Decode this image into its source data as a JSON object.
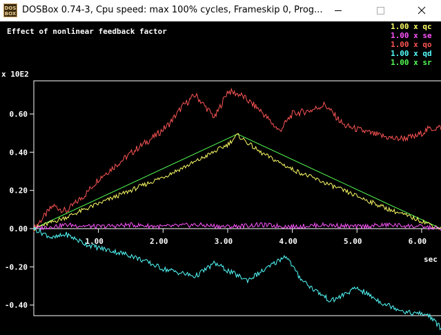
{
  "window": {
    "title": "DOSBox 0.74-3, Cpu speed: max 100% cycles, Frameskip  0, Prog...",
    "icon": "dosbox-icon",
    "controls": [
      "minimize-icon",
      "maximize-icon",
      "close-icon"
    ]
  },
  "plot": {
    "title": "Effect of nonlinear feedback factor",
    "y_scale_label": "x 10E2",
    "x_unit_label": "sec",
    "legend": [
      {
        "label": "1.00 x qc",
        "color": "#ffff66"
      },
      {
        "label": "1.00 x se",
        "color": "#ff55ff"
      },
      {
        "label": "1.00 x qo",
        "color": "#ff5555"
      },
      {
        "label": "1.00 x qd",
        "color": "#55ffff"
      },
      {
        "label": "1.00 x sr",
        "color": "#55ff55"
      }
    ]
  },
  "chart_data": {
    "type": "line",
    "title": "Effect of nonlinear feedback factor",
    "xlabel": "sec",
    "ylabel": "x 10E2",
    "xlim": [
      0,
      6.3
    ],
    "ylim": [
      -0.53,
      0.78
    ],
    "x_ticks": [
      "1.00",
      "2.00",
      "3.00",
      "4.00",
      "5.00",
      "6.00"
    ],
    "y_ticks": [
      "0.60",
      "0.40",
      "0.20",
      "0.00",
      "-0.20",
      "-0.40"
    ],
    "x_tick_values": [
      1,
      2,
      3,
      4,
      5,
      6
    ],
    "y_tick_values": [
      0.6,
      0.4,
      0.2,
      0.0,
      -0.2,
      -0.4
    ],
    "series": [
      {
        "name": "1.00 x qo",
        "color": "#ff5555",
        "x": [
          0,
          0.3,
          0.5,
          0.8,
          1.0,
          1.3,
          1.6,
          1.9,
          2.1,
          2.3,
          2.5,
          2.8,
          3.0,
          3.2,
          3.5,
          3.8,
          4.0,
          4.3,
          4.5,
          4.8,
          5.0,
          5.3,
          5.6,
          5.9,
          6.1,
          6.3
        ],
        "y": [
          0,
          0.12,
          0.09,
          0.18,
          0.26,
          0.34,
          0.42,
          0.49,
          0.55,
          0.64,
          0.7,
          0.58,
          0.72,
          0.7,
          0.62,
          0.51,
          0.6,
          0.62,
          0.65,
          0.54,
          0.52,
          0.49,
          0.47,
          0.48,
          0.52,
          0.53
        ]
      },
      {
        "name": "1.00 x sr",
        "color": "#55ff55",
        "x": [
          0,
          3.15,
          6.3
        ],
        "y": [
          0,
          0.495,
          0
        ]
      },
      {
        "name": "1.00 x qc",
        "color": "#ffff66",
        "x": [
          0,
          0.5,
          1.0,
          1.5,
          2.0,
          2.5,
          3.0,
          3.15,
          3.5,
          4.0,
          4.5,
          5.0,
          5.5,
          6.0,
          6.3
        ],
        "y": [
          0,
          0.06,
          0.13,
          0.2,
          0.27,
          0.35,
          0.44,
          0.49,
          0.4,
          0.31,
          0.24,
          0.17,
          0.1,
          0.04,
          0
        ]
      },
      {
        "name": "1.00 x se",
        "color": "#ff55ff",
        "x": [
          0,
          0.5,
          1.0,
          1.5,
          2.0,
          2.5,
          3.0,
          3.5,
          4.0,
          4.5,
          5.0,
          5.5,
          6.0,
          6.3
        ],
        "y": [
          0,
          0.02,
          0.01,
          0.02,
          0.01,
          0.02,
          0.01,
          0.02,
          0.01,
          0.02,
          0.01,
          0.02,
          0.01,
          0.0
        ]
      },
      {
        "name": "1.00 x qd",
        "color": "#55ffff",
        "x": [
          0,
          0.3,
          0.5,
          0.8,
          1.0,
          1.5,
          2.0,
          2.5,
          2.8,
          3.0,
          3.3,
          3.6,
          3.9,
          4.1,
          4.3,
          4.6,
          5.0,
          5.4,
          5.8,
          6.1,
          6.3
        ],
        "y": [
          0,
          -0.05,
          -0.03,
          -0.08,
          -0.1,
          -0.14,
          -0.21,
          -0.25,
          -0.18,
          -0.22,
          -0.27,
          -0.21,
          -0.14,
          -0.25,
          -0.31,
          -0.38,
          -0.31,
          -0.39,
          -0.44,
          -0.45,
          -0.52
        ]
      }
    ]
  }
}
